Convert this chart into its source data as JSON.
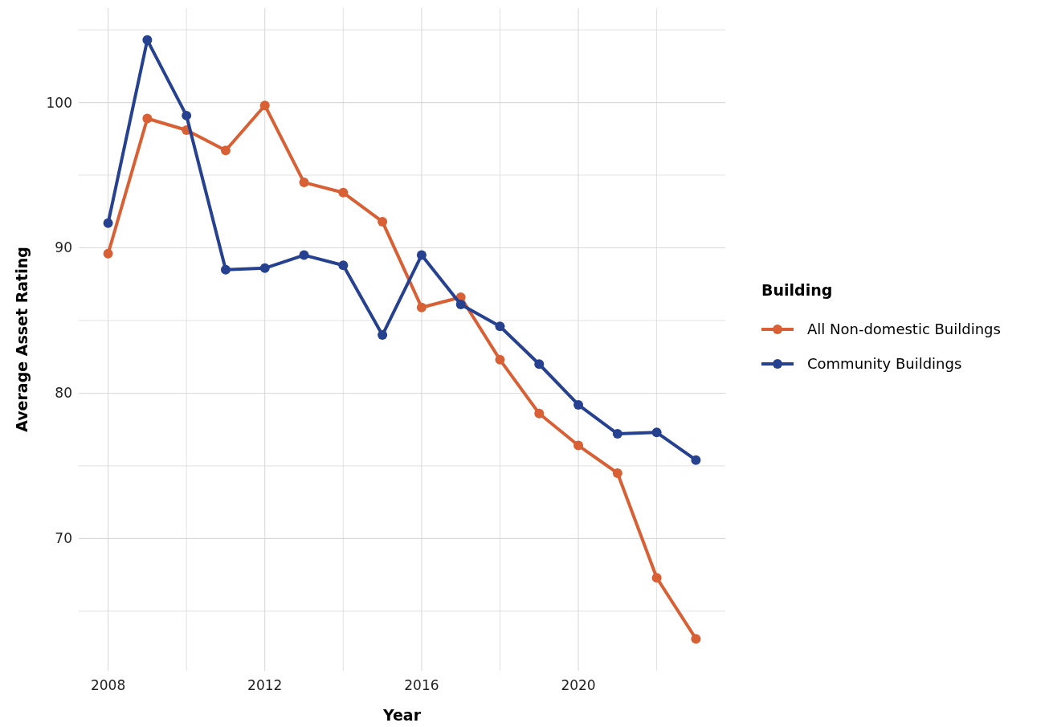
{
  "chart_data": {
    "type": "line",
    "xlabel": "Year",
    "ylabel": "Average Asset Rating",
    "legend_title": "Building",
    "legend": "right",
    "grid": true,
    "marker": "circle",
    "line_style": "solid",
    "x": [
      2008,
      2009,
      2010,
      2011,
      2012,
      2013,
      2014,
      2015,
      2016,
      2017,
      2018,
      2019,
      2020,
      2021,
      2022,
      2023
    ],
    "xlim": [
      2007.25,
      2023.75
    ],
    "xticks": [
      2008,
      {
        "value": 2010,
        "label": null
      },
      2012,
      {
        "value": 2014,
        "label": null
      },
      2016,
      {
        "value": 2018,
        "label": null
      },
      2020,
      {
        "value": 2022,
        "label": null
      }
    ],
    "ylim": [
      60.9,
      106.5
    ],
    "yticks": [
      {
        "value": 65,
        "label": null
      },
      70,
      {
        "value": 75,
        "label": null
      },
      80,
      {
        "value": 85,
        "label": null
      },
      90,
      {
        "value": 95,
        "label": null
      },
      100,
      {
        "value": 105,
        "label": null
      }
    ],
    "series": [
      {
        "name": "All Non-domestic Buildings",
        "color": "#d95f35",
        "values": [
          89.6,
          98.9,
          98.1,
          96.7,
          99.8,
          94.5,
          93.8,
          91.8,
          85.9,
          86.6,
          82.3,
          78.6,
          76.4,
          74.5,
          67.3,
          63.1
        ]
      },
      {
        "name": "Community Buildings",
        "color": "#26418f",
        "values": [
          91.7,
          104.3,
          99.1,
          88.5,
          88.6,
          89.5,
          88.8,
          84.0,
          89.5,
          86.1,
          84.6,
          82.0,
          79.2,
          77.2,
          77.3,
          75.4
        ]
      }
    ]
  }
}
